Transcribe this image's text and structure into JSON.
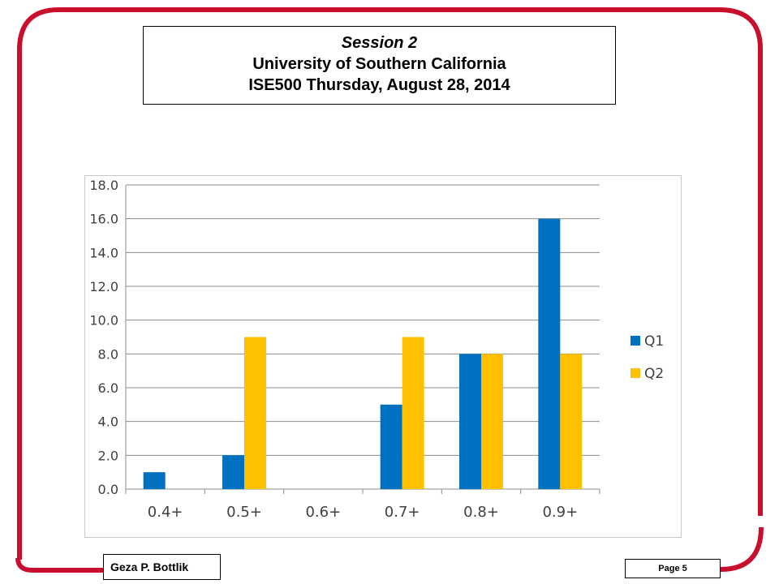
{
  "slide": {
    "title_line1": "Session 2",
    "title_line2": "University of Southern California",
    "title_line3": "ISE500 Thursday,  August 28, 2014",
    "author": "Geza P. Bottlik",
    "page": "Page 5",
    "frame_color": "#c8102e"
  },
  "chart_data": {
    "type": "bar",
    "categories": [
      "0.4+",
      "0.5+",
      "0.6+",
      "0.7+",
      "0.8+",
      "0.9+"
    ],
    "series": [
      {
        "name": "Q1",
        "values": [
          1,
          2,
          0,
          5,
          8,
          16
        ],
        "color": "#0070c0"
      },
      {
        "name": "Q2",
        "values": [
          0,
          9,
          0,
          9,
          8,
          8
        ],
        "color": "#ffc000"
      }
    ],
    "yticks": [
      "0.0",
      "2.0",
      "4.0",
      "6.0",
      "8.0",
      "10.0",
      "12.0",
      "14.0",
      "16.0",
      "18.0"
    ],
    "ylim": [
      0,
      18
    ],
    "grid": true,
    "legend_position": "right"
  }
}
